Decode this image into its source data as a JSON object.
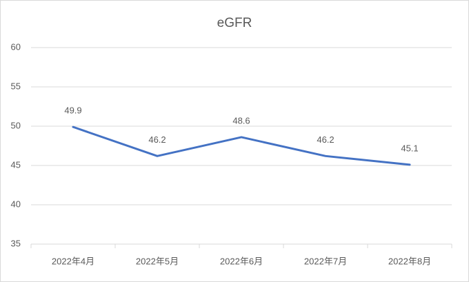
{
  "chart_data": {
    "type": "line",
    "title": "eGFR",
    "categories": [
      "2022年4月",
      "2022年5月",
      "2022年6月",
      "2022年7月",
      "2022年8月"
    ],
    "values": [
      49.9,
      46.2,
      48.6,
      46.2,
      45.1
    ],
    "color": "#4472c4",
    "ylim": [
      35,
      60
    ],
    "yticks": [
      35,
      40,
      45,
      50,
      55,
      60
    ],
    "grid": true
  }
}
